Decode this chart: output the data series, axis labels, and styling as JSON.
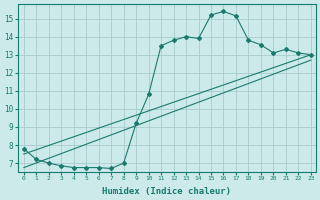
{
  "xlabel": "Humidex (Indice chaleur)",
  "bg_color": "#cceaea",
  "grid_color": "#aacccc",
  "line_color": "#1a7a6e",
  "x_min": -0.5,
  "x_max": 23.4,
  "y_min": 6.5,
  "y_max": 15.8,
  "yticks": [
    7,
    8,
    9,
    10,
    11,
    12,
    13,
    14,
    15
  ],
  "xticks": [
    0,
    1,
    2,
    3,
    4,
    5,
    6,
    7,
    8,
    9,
    10,
    11,
    12,
    13,
    14,
    15,
    16,
    17,
    18,
    19,
    20,
    21,
    22,
    23
  ],
  "line1_x": [
    0,
    1,
    2,
    3,
    4,
    5,
    6,
    7,
    8,
    9,
    10,
    11,
    12,
    13,
    14,
    15,
    16,
    17,
    18,
    19,
    20,
    21,
    22,
    23
  ],
  "line1_y": [
    7.8,
    7.2,
    7.0,
    6.85,
    6.75,
    6.75,
    6.75,
    6.7,
    7.0,
    9.2,
    10.8,
    13.5,
    13.8,
    14.0,
    13.9,
    15.2,
    15.4,
    15.15,
    13.8,
    13.55,
    13.1,
    13.3,
    13.1,
    13.0
  ],
  "line2_x": [
    0,
    23
  ],
  "line2_y": [
    7.5,
    13.0
  ],
  "line3_x": [
    0,
    23
  ],
  "line3_y": [
    6.75,
    12.7
  ]
}
